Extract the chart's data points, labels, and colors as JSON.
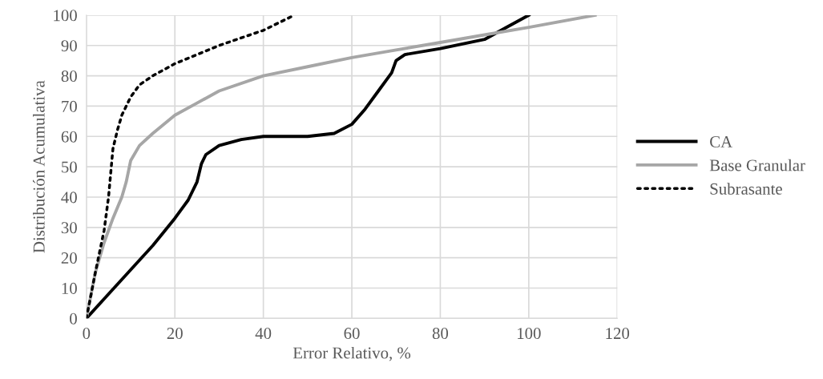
{
  "chart_data": {
    "type": "line",
    "xlabel": "Error Relativo, %",
    "ylabel": "Distribución Acumulativa",
    "xlim": [
      0,
      120
    ],
    "ylim": [
      0,
      100
    ],
    "xticks": [
      0,
      20,
      40,
      60,
      80,
      100,
      120
    ],
    "yticks": [
      0,
      10,
      20,
      30,
      40,
      50,
      60,
      70,
      80,
      90,
      100
    ],
    "grid": true,
    "legend": "right",
    "series": [
      {
        "name": "CA",
        "color": "#000000",
        "line_style": "solid",
        "x": [
          0,
          5,
          10,
          15,
          20,
          23,
          25,
          26,
          27,
          30,
          35,
          40,
          50,
          56,
          60,
          63,
          66,
          68,
          69,
          70,
          72,
          80,
          90,
          95,
          100
        ],
        "values": [
          0,
          8,
          16,
          24,
          33,
          39,
          45,
          51,
          54,
          57,
          59,
          60,
          60,
          61,
          64,
          69,
          75,
          79,
          81,
          85,
          87,
          89,
          92,
          96,
          100
        ]
      },
      {
        "name": "Base Granular",
        "color": "#a6a6a6",
        "line_style": "solid",
        "x": [
          0,
          2,
          4,
          6,
          8,
          9,
          10,
          12,
          15,
          20,
          25,
          30,
          40,
          50,
          60,
          70,
          80,
          90,
          100,
          115
        ],
        "values": [
          0,
          15,
          25,
          33,
          40,
          45,
          52,
          57,
          61,
          67,
          71,
          75,
          80,
          83,
          86,
          88.5,
          91,
          93.5,
          96,
          100
        ]
      },
      {
        "name": "Subrasante",
        "color": "#000000",
        "line_style": "dotted",
        "x": [
          0,
          2,
          4,
          5,
          6,
          7,
          8,
          9,
          10,
          12,
          15,
          20,
          30,
          40,
          47
        ],
        "values": [
          0,
          15,
          29,
          40,
          56,
          62,
          67,
          70,
          73,
          77,
          80,
          84,
          90,
          95,
          100
        ]
      }
    ]
  }
}
